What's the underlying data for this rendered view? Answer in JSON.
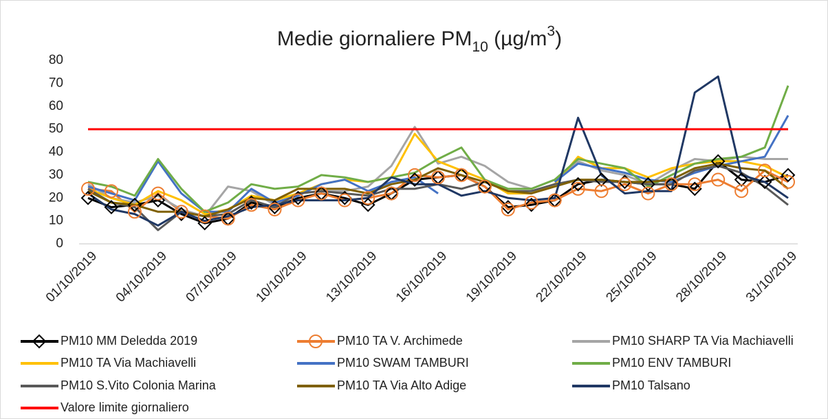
{
  "chart_data": {
    "type": "line",
    "title_parts": [
      {
        "text": "Medie giornaliere PM"
      },
      {
        "text": "10",
        "shift": "sub"
      },
      {
        "text": " (µg/m"
      },
      {
        "text": "3",
        "shift": "sup"
      },
      {
        "text": ")"
      }
    ],
    "x": [
      "01/10/2019",
      null,
      null,
      "04/10/2019",
      null,
      null,
      "07/10/2019",
      null,
      null,
      "10/10/2019",
      null,
      null,
      "13/10/2019",
      null,
      null,
      "16/10/2019",
      null,
      null,
      "19/10/2019",
      null,
      null,
      "22/10/2019",
      null,
      null,
      "25/10/2019",
      null,
      null,
      "28/10/2019",
      null,
      null,
      "31/10/2019"
    ],
    "ylim": [
      0,
      80
    ],
    "yticks": [
      0,
      10,
      20,
      30,
      40,
      50,
      60,
      70,
      80
    ],
    "grid": false,
    "legend": "bottom",
    "series": [
      {
        "name": "PM10 MM Deledda 2019",
        "color": "#000000",
        "marker": "diamond",
        "values": [
          20,
          16,
          17,
          19,
          13,
          9,
          11,
          18,
          16,
          20,
          22,
          20,
          17,
          22,
          28,
          29,
          30,
          25,
          16,
          17,
          19,
          26,
          28,
          27,
          26,
          26,
          24,
          36,
          28,
          27,
          30
        ]
      },
      {
        "name": "PM10 TA V. Archimede",
        "color": "#ed7d31",
        "marker": "circle",
        "values": [
          24,
          23,
          14,
          22,
          14,
          12,
          11,
          17,
          15,
          19,
          22,
          19,
          20,
          22,
          30,
          29,
          30,
          25,
          15,
          18,
          19,
          24,
          23,
          26,
          22,
          26,
          26,
          28,
          23,
          32,
          27
        ]
      },
      {
        "name": "PM10 SHARP TA Via Machiavelli",
        "color": "#a5a5a5",
        "values": [
          26,
          20,
          18,
          21,
          15,
          12,
          25,
          23,
          17,
          22,
          23,
          23,
          25,
          34,
          51,
          35,
          38,
          34,
          27,
          24,
          28,
          36,
          32,
          30,
          26,
          32,
          37,
          36,
          38,
          37,
          37
        ]
      },
      {
        "name": "PM10 TA Via Machiavelli",
        "color": "#ffc000",
        "values": [
          24,
          20,
          17,
          23,
          19,
          13,
          15,
          21,
          19,
          22,
          26,
          28,
          27,
          29,
          48,
          36,
          32,
          28,
          22,
          22,
          26,
          38,
          33,
          33,
          29,
          33,
          35,
          36,
          36,
          34,
          29
        ]
      },
      {
        "name": "PM10 SWAM TAMBURI",
        "color": "#4472c4",
        "values": [
          25,
          22,
          19,
          36,
          22,
          14,
          14,
          24,
          18,
          21,
          26,
          28,
          23,
          27,
          29,
          22,
          null,
          null,
          null,
          null,
          27,
          35,
          33,
          31,
          28,
          27,
          31,
          34,
          36,
          38,
          56
        ]
      },
      {
        "name": "PM10 ENV TAMBURI",
        "color": "#70ad47",
        "values": [
          27,
          25,
          21,
          37,
          24,
          14,
          18,
          26,
          24,
          25,
          30,
          29,
          27,
          29,
          31,
          37,
          42,
          28,
          24,
          24,
          28,
          37,
          35,
          33,
          25,
          30,
          35,
          37,
          38,
          42,
          69
        ]
      },
      {
        "name": "PM10 S.Vito Colonia Marina",
        "color": "#595959",
        "values": [
          24,
          18,
          16,
          6,
          14,
          12,
          13,
          19,
          16,
          22,
          23,
          22,
          21,
          24,
          24,
          26,
          24,
          27,
          23,
          23,
          26,
          28,
          27,
          27,
          26,
          26,
          32,
          34,
          31,
          25,
          17
        ]
      },
      {
        "name": "PM10 TA Via Alto Adige",
        "color": "#7f6000",
        "values": [
          23,
          18,
          17,
          14,
          14,
          12,
          15,
          20,
          19,
          24,
          24,
          24,
          22,
          26,
          28,
          33,
          30,
          27,
          23,
          22,
          25,
          28,
          28,
          27,
          27,
          28,
          33,
          35,
          33,
          32,
          24
        ]
      },
      {
        "name": "PM10 Talsano",
        "color": "#203864",
        "values": [
          22,
          15,
          13,
          8,
          14,
          10,
          12,
          16,
          17,
          19,
          19,
          19,
          20,
          29,
          26,
          26,
          21,
          23,
          20,
          19,
          20,
          55,
          30,
          22,
          23,
          23,
          66,
          73,
          30,
          27,
          20
        ]
      },
      {
        "name": "Valore limite giornaliero",
        "color": "#ff0000",
        "values": [
          50,
          50,
          50,
          50,
          50,
          50,
          50,
          50,
          50,
          50,
          50,
          50,
          50,
          50,
          50,
          50,
          50,
          50,
          50,
          50,
          50,
          50,
          50,
          50,
          50,
          50,
          50,
          50,
          50,
          50,
          50
        ]
      }
    ]
  }
}
